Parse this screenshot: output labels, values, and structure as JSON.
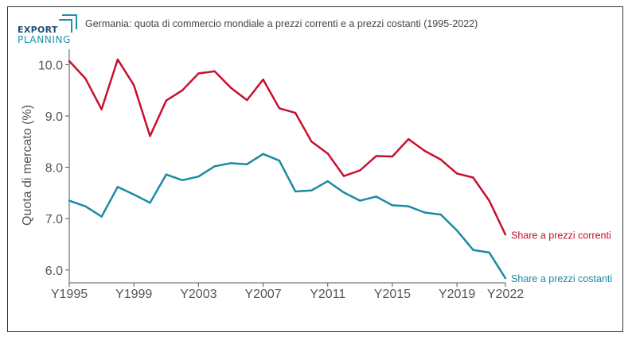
{
  "title": "Germania: quota di commercio mondiale a prezzi correnti e a prezzi costanti (1995-2022)",
  "logo": {
    "line1": "EXPORT",
    "line2": "PLANNING"
  },
  "chart_data": {
    "type": "line",
    "title": "Germania: quota di commercio mondiale a prezzi correnti e a prezzi costanti (1995-2022)",
    "xlabel": "",
    "ylabel": "Quota di mercato (%)",
    "x": [
      1995,
      1996,
      1997,
      1998,
      1999,
      2000,
      2001,
      2002,
      2003,
      2004,
      2005,
      2006,
      2007,
      2008,
      2009,
      2010,
      2011,
      2012,
      2013,
      2014,
      2015,
      2016,
      2017,
      2018,
      2019,
      2020,
      2021,
      2022
    ],
    "x_tick_labels": [
      "Y1995",
      "Y1999",
      "Y2003",
      "Y2007",
      "Y2011",
      "Y2015",
      "Y2019",
      "Y2022"
    ],
    "x_tick_values": [
      1995,
      1999,
      2003,
      2007,
      2011,
      2015,
      2019,
      2022
    ],
    "y_ticks": [
      "6.0",
      "7.0",
      "8.0",
      "9.0",
      "10.0"
    ],
    "ylim": [
      5.75,
      10.3
    ],
    "grid": false,
    "legend": "inline labels at right end of lines",
    "series": [
      {
        "name": "Share a prezzi correnti",
        "color": "#c8102e",
        "values": [
          10.07,
          9.73,
          9.13,
          10.1,
          9.6,
          8.61,
          9.3,
          9.5,
          9.83,
          9.87,
          9.55,
          9.31,
          9.71,
          9.15,
          9.06,
          8.5,
          8.27,
          7.83,
          7.94,
          8.22,
          8.21,
          8.55,
          8.32,
          8.15,
          7.88,
          7.8,
          7.35,
          6.69
        ]
      },
      {
        "name": "Share a prezzi costanti",
        "color": "#1b8aa5",
        "values": [
          7.35,
          7.24,
          7.04,
          7.62,
          7.47,
          7.31,
          7.86,
          7.75,
          7.82,
          8.02,
          8.08,
          8.06,
          8.26,
          8.13,
          7.53,
          7.55,
          7.73,
          7.51,
          7.35,
          7.43,
          7.26,
          7.24,
          7.12,
          7.08,
          6.77,
          6.39,
          6.34,
          5.84
        ]
      }
    ]
  }
}
